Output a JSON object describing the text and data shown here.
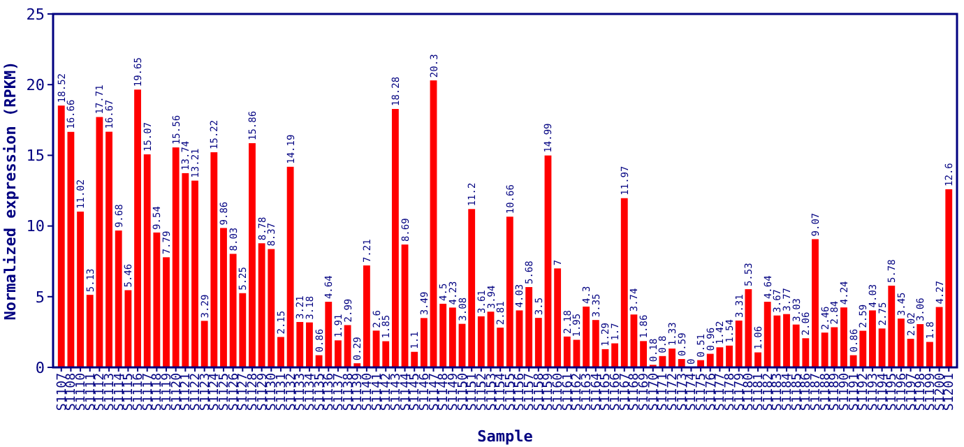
{
  "chart_data": {
    "type": "bar",
    "xlabel": "Sample",
    "ylabel": "Normalized expression (RPKM)",
    "color": "#ff0000",
    "data_labels": true,
    "ylim": [
      0,
      25
    ],
    "yticks": [
      0,
      5,
      10,
      15,
      20,
      25
    ],
    "grid": false,
    "categories": [
      "S1107",
      "S1108",
      "S1110",
      "S1111",
      "S1112",
      "S1113",
      "S1114",
      "S1115",
      "S1116",
      "S1117",
      "S1118",
      "S1119",
      "S1120",
      "S1121",
      "S1122",
      "S1123",
      "S1124",
      "S1125",
      "S1126",
      "S1127",
      "S1128",
      "S1129",
      "S1130",
      "S1131",
      "S1132",
      "S1133",
      "S1134",
      "S1135",
      "S1136",
      "S1137",
      "S1138",
      "S1139",
      "S1140",
      "S1141",
      "S1142",
      "S1143",
      "S1144",
      "S1145",
      "S1146",
      "S1147",
      "S1148",
      "S1149",
      "S1150",
      "S1151",
      "S1152",
      "S1153",
      "S1154",
      "S1155",
      "S1156",
      "S1157",
      "S1158",
      "S1159",
      "S1160",
      "S1161",
      "S1162",
      "S1163",
      "S1164",
      "S1165",
      "S1166",
      "S1167",
      "S1168",
      "S1169",
      "S1170",
      "S1171",
      "S1172",
      "S1173",
      "S1174",
      "S1175",
      "S1176",
      "S1177",
      "S1178",
      "S1179",
      "S1180",
      "S1181",
      "S1182",
      "S1183",
      "S1184",
      "S1185",
      "S1186",
      "S1187",
      "S1188",
      "S1189",
      "S1190",
      "S1191",
      "S1192",
      "S1193",
      "S1194",
      "S1195",
      "S1196",
      "S1197",
      "S1198",
      "S1199",
      "S1200",
      "S1201"
    ],
    "values": [
      18.52,
      16.66,
      11.02,
      5.13,
      17.71,
      16.67,
      9.68,
      5.46,
      19.65,
      15.07,
      9.54,
      7.79,
      15.56,
      13.74,
      13.21,
      3.29,
      15.22,
      9.86,
      8.03,
      5.25,
      15.86,
      8.78,
      8.37,
      2.15,
      14.19,
      3.21,
      3.18,
      0.86,
      4.64,
      1.91,
      2.99,
      0.29,
      7.21,
      2.6,
      1.85,
      18.28,
      8.69,
      1.1,
      3.49,
      20.3,
      4.5,
      4.23,
      3.08,
      11.2,
      3.61,
      3.94,
      2.81,
      10.66,
      4.03,
      5.68,
      3.5,
      14.99,
      7,
      2.18,
      1.95,
      4.3,
      3.35,
      1.29,
      1.7,
      11.97,
      3.74,
      1.86,
      0.18,
      0.8,
      1.33,
      0.59,
      0,
      0.51,
      0.96,
      1.42,
      1.54,
      3.31,
      5.53,
      1.06,
      4.64,
      3.67,
      3.77,
      3.03,
      2.06,
      9.07,
      2.46,
      2.84,
      4.24,
      0.86,
      2.59,
      4.03,
      2.75,
      5.78,
      3.45,
      2.02,
      3.06,
      1.8,
      4.27,
      12.6
    ]
  }
}
